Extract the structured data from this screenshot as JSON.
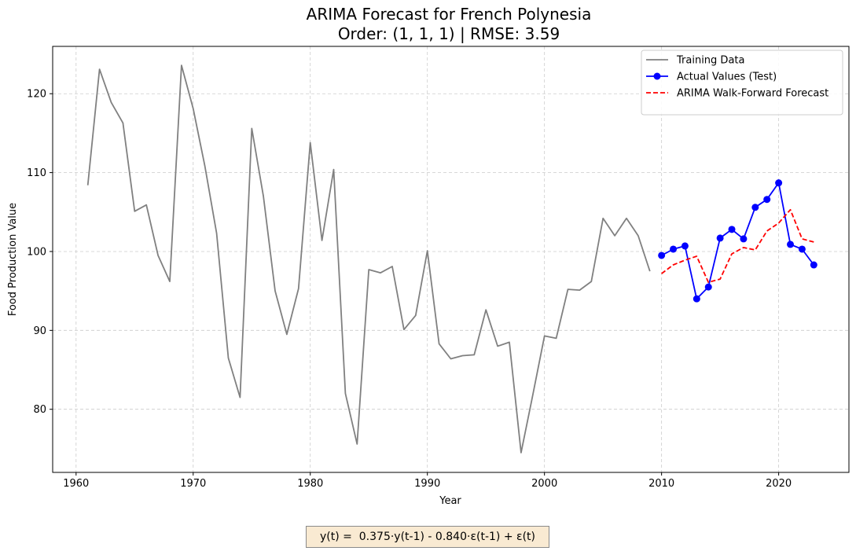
{
  "chart_data": {
    "type": "line",
    "title": "ARIMA Forecast for French Polynesia",
    "subtitle": "Order: (1, 1, 1) | RMSE: 3.59",
    "xlabel": "Year",
    "ylabel": "Food Production Value",
    "xlim": [
      1958,
      2026
    ],
    "ylim": [
      72,
      126
    ],
    "xticks": [
      1960,
      1970,
      1980,
      1990,
      2000,
      2010,
      2020
    ],
    "yticks": [
      80,
      90,
      100,
      110,
      120
    ],
    "grid": true,
    "legend_position": "top-right",
    "series": [
      {
        "name": "Training Data",
        "color": "#808080",
        "style": "solid",
        "marker": "none",
        "x": [
          1961,
          1962,
          1963,
          1964,
          1965,
          1966,
          1967,
          1968,
          1969,
          1970,
          1971,
          1972,
          1973,
          1974,
          1975,
          1976,
          1977,
          1978,
          1979,
          1980,
          1981,
          1982,
          1983,
          1984,
          1985,
          1986,
          1987,
          1988,
          1989,
          1990,
          1991,
          1992,
          1993,
          1994,
          1995,
          1996,
          1997,
          1998,
          1999,
          2000,
          2001,
          2002,
          2003,
          2004,
          2005,
          2006,
          2007,
          2008,
          2009
        ],
        "y": [
          108.4,
          123.1,
          118.9,
          116.3,
          105.1,
          105.9,
          99.5,
          96.2,
          123.6,
          118.1,
          110.8,
          102.3,
          86.5,
          81.5,
          115.6,
          107.0,
          95.0,
          89.5,
          95.3,
          113.8,
          101.4,
          110.4,
          82.0,
          75.6,
          97.7,
          97.3,
          98.1,
          90.1,
          91.9,
          100.1,
          88.3,
          86.4,
          86.8,
          86.9,
          92.6,
          88.0,
          88.5,
          74.5,
          81.8,
          89.3,
          89.0,
          95.2,
          95.1,
          96.2,
          104.2,
          102.0,
          104.2,
          102.0,
          97.5
        ]
      },
      {
        "name": "Actual Values (Test)",
        "color": "#0000ff",
        "style": "solid",
        "marker": "circle",
        "x": [
          2010,
          2011,
          2012,
          2013,
          2014,
          2015,
          2016,
          2017,
          2018,
          2019,
          2020,
          2021,
          2022,
          2023
        ],
        "y": [
          99.5,
          100.3,
          100.7,
          94.0,
          95.5,
          101.7,
          102.8,
          101.6,
          105.6,
          106.6,
          108.7,
          100.9,
          100.3,
          98.3
        ]
      },
      {
        "name": "ARIMA Walk-Forward Forecast",
        "color": "#ff0000",
        "style": "dashed",
        "marker": "none",
        "x": [
          2010,
          2011,
          2012,
          2013,
          2014,
          2015,
          2016,
          2017,
          2018,
          2019,
          2020,
          2021,
          2022,
          2023
        ],
        "y": [
          97.2,
          98.3,
          98.9,
          99.4,
          96.1,
          96.5,
          99.7,
          100.5,
          100.2,
          102.6,
          103.6,
          105.3,
          101.6,
          101.2
        ]
      }
    ]
  },
  "formula": "y(t) =  0.375·y(t-1) - 0.840·ε(t-1) + ε(t)"
}
